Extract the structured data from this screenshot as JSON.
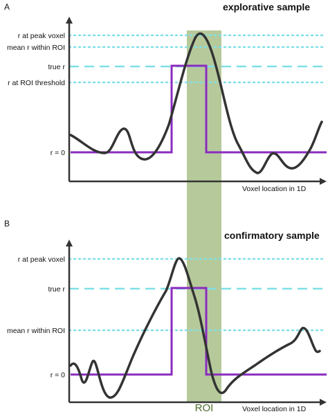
{
  "panel_a": {
    "letter": "A",
    "heading": "explorative sample",
    "labels": {
      "peak": "r at peak voxel",
      "mean": "mean r within ROI",
      "true": "true r",
      "threshold": "r at ROI threshold",
      "zero": "r = 0"
    },
    "xlabel": "Voxel location in 1D"
  },
  "panel_b": {
    "letter": "B",
    "heading": "confirmatory sample",
    "labels": {
      "peak": "r at peak voxel",
      "true": "true r",
      "mean": "mean r within ROI",
      "zero": "r = 0"
    },
    "xlabel": "Voxel location in 1D"
  },
  "roi_label": "ROI",
  "colors": {
    "roi_band": "#a9c08a",
    "true_signal": "#8a2bbf",
    "observed_curve": "#333333",
    "reference_lines": "#7fe0e6",
    "axes": "#333333"
  }
}
